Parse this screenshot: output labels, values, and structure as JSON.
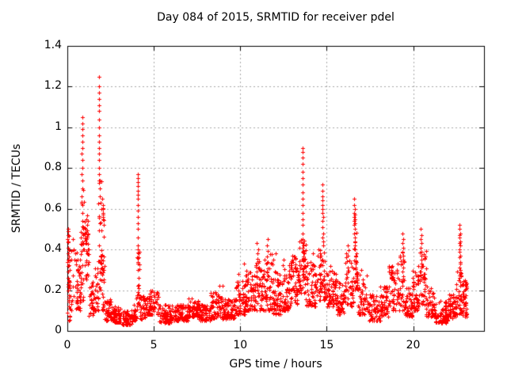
{
  "chart_data": {
    "type": "scatter",
    "title": "Day 084 of 2015, SRMTID for receiver pdel",
    "xlabel": "GPS time / hours",
    "ylabel": "SRMTID / TECUs",
    "xlim": [
      0,
      24.1
    ],
    "ylim": [
      0,
      1.4
    ],
    "xticks": {
      "values": [
        0,
        5,
        10,
        15,
        20
      ],
      "labels": [
        "0",
        "5",
        "10",
        "15",
        "20"
      ]
    },
    "yticks": {
      "values": [
        0,
        0.2,
        0.4,
        0.6,
        0.8,
        1.0,
        1.2,
        1.4
      ],
      "labels": [
        "0",
        "0.2",
        "0.4",
        "0.6",
        "0.8",
        "1",
        "1.2",
        "1.4"
      ]
    },
    "grid": true,
    "legend_position": "none",
    "marker": {
      "shape": "plus",
      "size": 5,
      "color": "#ff0000"
    },
    "colors": {
      "background": "#ffffff",
      "border": "#000000",
      "grid": "#a8a8a8",
      "text": "#000000"
    },
    "spike_points": [
      [
        0.05,
        0.5
      ],
      [
        0.05,
        0.47
      ],
      [
        0.06,
        0.44
      ],
      [
        0.04,
        0.41
      ],
      [
        0.05,
        0.38
      ],
      [
        0.06,
        0.35
      ],
      [
        0.04,
        0.32
      ],
      [
        0.05,
        0.29
      ],
      [
        0.05,
        0.26
      ],
      [
        0.06,
        0.23
      ],
      [
        0.04,
        0.2
      ],
      [
        0.25,
        0.35
      ],
      [
        0.3,
        0.45
      ],
      [
        0.35,
        0.4
      ],
      [
        0.45,
        0.38
      ],
      [
        0.85,
        1.05
      ],
      [
        0.85,
        1.02
      ],
      [
        0.86,
        0.99
      ],
      [
        0.85,
        0.96
      ],
      [
        0.86,
        0.93
      ],
      [
        0.85,
        0.9
      ],
      [
        0.84,
        0.87
      ],
      [
        0.86,
        0.84
      ],
      [
        0.85,
        0.8
      ],
      [
        0.84,
        0.77
      ],
      [
        0.86,
        0.74
      ],
      [
        0.85,
        0.7
      ],
      [
        0.84,
        0.66
      ],
      [
        0.85,
        0.62
      ],
      [
        0.86,
        0.58
      ],
      [
        0.85,
        0.54
      ],
      [
        0.9,
        0.5
      ],
      [
        0.92,
        0.47
      ],
      [
        0.88,
        0.44
      ],
      [
        0.95,
        0.4
      ],
      [
        1.05,
        0.5
      ],
      [
        1.1,
        0.55
      ],
      [
        1.15,
        0.52
      ],
      [
        1.2,
        0.48
      ],
      [
        1.82,
        1.25
      ],
      [
        1.82,
        1.2
      ],
      [
        1.83,
        1.17
      ],
      [
        1.82,
        1.14
      ],
      [
        1.81,
        1.11
      ],
      [
        1.83,
        1.08
      ],
      [
        1.82,
        1.04
      ],
      [
        1.82,
        1.0
      ],
      [
        1.81,
        0.96
      ],
      [
        1.83,
        0.93
      ],
      [
        1.82,
        0.9
      ],
      [
        1.83,
        0.87
      ],
      [
        1.81,
        0.84
      ],
      [
        1.82,
        0.8
      ],
      [
        1.84,
        0.77
      ],
      [
        1.86,
        0.74
      ],
      [
        1.88,
        0.7
      ],
      [
        1.9,
        0.66
      ],
      [
        1.92,
        0.63
      ],
      [
        1.95,
        0.6
      ],
      [
        2.03,
        0.65
      ],
      [
        2.05,
        0.62
      ],
      [
        2.07,
        0.6
      ],
      [
        2.04,
        0.58
      ],
      [
        2.06,
        0.56
      ],
      [
        2.08,
        0.55
      ],
      [
        2.1,
        0.3
      ],
      [
        4.08,
        0.77
      ],
      [
        4.09,
        0.75
      ],
      [
        4.08,
        0.73
      ],
      [
        4.1,
        0.71
      ],
      [
        4.09,
        0.69
      ],
      [
        4.08,
        0.67
      ],
      [
        4.1,
        0.65
      ],
      [
        4.09,
        0.62
      ],
      [
        4.08,
        0.59
      ],
      [
        4.1,
        0.56
      ],
      [
        4.09,
        0.53
      ],
      [
        4.08,
        0.5
      ],
      [
        4.1,
        0.46
      ],
      [
        4.09,
        0.42
      ],
      [
        4.11,
        0.38
      ],
      [
        4.1,
        0.34
      ],
      [
        4.09,
        0.3
      ],
      [
        4.11,
        0.26
      ],
      [
        4.1,
        0.22
      ],
      [
        4.12,
        0.18
      ],
      [
        4.8,
        0.2
      ],
      [
        5.0,
        0.19
      ],
      [
        6.5,
        0.13
      ],
      [
        7.2,
        0.16
      ],
      [
        8.8,
        0.22
      ],
      [
        9.0,
        0.22
      ],
      [
        9.9,
        0.28
      ],
      [
        10.2,
        0.33
      ],
      [
        10.95,
        0.43
      ],
      [
        11.05,
        0.4
      ],
      [
        11.55,
        0.42
      ],
      [
        11.6,
        0.45
      ],
      [
        12.05,
        0.38
      ],
      [
        12.5,
        0.35
      ],
      [
        13.0,
        0.37
      ],
      [
        13.05,
        0.34
      ],
      [
        13.6,
        0.9
      ],
      [
        13.6,
        0.88
      ],
      [
        13.61,
        0.85
      ],
      [
        13.59,
        0.82
      ],
      [
        13.6,
        0.78
      ],
      [
        13.62,
        0.75
      ],
      [
        13.6,
        0.72
      ],
      [
        13.61,
        0.68
      ],
      [
        13.59,
        0.65
      ],
      [
        13.6,
        0.62
      ],
      [
        13.62,
        0.58
      ],
      [
        13.6,
        0.55
      ],
      [
        13.61,
        0.52
      ],
      [
        13.63,
        0.48
      ],
      [
        13.6,
        0.45
      ],
      [
        13.65,
        0.42
      ],
      [
        13.68,
        0.38
      ],
      [
        13.7,
        0.35
      ],
      [
        13.72,
        0.32
      ],
      [
        13.66,
        0.29
      ],
      [
        14.2,
        0.38
      ],
      [
        14.75,
        0.72
      ],
      [
        14.75,
        0.69
      ],
      [
        14.76,
        0.66
      ],
      [
        14.74,
        0.64
      ],
      [
        14.77,
        0.62
      ],
      [
        14.75,
        0.6
      ],
      [
        14.76,
        0.58
      ],
      [
        14.78,
        0.56
      ],
      [
        14.75,
        0.54
      ],
      [
        14.77,
        0.51
      ],
      [
        14.79,
        0.48
      ],
      [
        14.76,
        0.46
      ],
      [
        14.8,
        0.44
      ],
      [
        14.78,
        0.42
      ],
      [
        15.2,
        0.32
      ],
      [
        16.15,
        0.38
      ],
      [
        16.2,
        0.42
      ],
      [
        16.6,
        0.65
      ],
      [
        16.6,
        0.62
      ],
      [
        16.61,
        0.6
      ],
      [
        16.59,
        0.58
      ],
      [
        16.62,
        0.57
      ],
      [
        16.6,
        0.56
      ],
      [
        16.61,
        0.55
      ],
      [
        16.58,
        0.54
      ],
      [
        16.62,
        0.53
      ],
      [
        16.6,
        0.52
      ],
      [
        16.63,
        0.5
      ],
      [
        16.59,
        0.48
      ],
      [
        16.64,
        0.46
      ],
      [
        16.61,
        0.44
      ],
      [
        16.65,
        0.42
      ],
      [
        16.62,
        0.4
      ],
      [
        16.66,
        0.37
      ],
      [
        16.68,
        0.34
      ],
      [
        16.7,
        0.31
      ],
      [
        16.72,
        0.28
      ],
      [
        17.0,
        0.3
      ],
      [
        18.75,
        0.3
      ],
      [
        18.8,
        0.32
      ],
      [
        19.4,
        0.48
      ],
      [
        19.41,
        0.45
      ],
      [
        19.39,
        0.43
      ],
      [
        19.42,
        0.41
      ],
      [
        19.4,
        0.39
      ],
      [
        19.43,
        0.37
      ],
      [
        19.41,
        0.35
      ],
      [
        19.39,
        0.33
      ],
      [
        19.42,
        0.31
      ],
      [
        19.4,
        0.29
      ],
      [
        19.44,
        0.27
      ],
      [
        19.45,
        0.25
      ],
      [
        20.45,
        0.5
      ],
      [
        20.46,
        0.47
      ],
      [
        20.44,
        0.45
      ],
      [
        20.47,
        0.43
      ],
      [
        20.45,
        0.41
      ],
      [
        20.48,
        0.39
      ],
      [
        20.46,
        0.37
      ],
      [
        20.49,
        0.35
      ],
      [
        20.47,
        0.33
      ],
      [
        20.5,
        0.31
      ],
      [
        22.7,
        0.52
      ],
      [
        22.7,
        0.5
      ],
      [
        22.71,
        0.48
      ],
      [
        22.69,
        0.47
      ],
      [
        22.7,
        0.46
      ],
      [
        22.72,
        0.44
      ],
      [
        22.7,
        0.43
      ],
      [
        22.71,
        0.42
      ],
      [
        22.69,
        0.4
      ],
      [
        22.7,
        0.39
      ],
      [
        22.72,
        0.37
      ],
      [
        22.7,
        0.36
      ],
      [
        22.71,
        0.34
      ],
      [
        22.73,
        0.33
      ],
      [
        22.7,
        0.31
      ],
      [
        22.72,
        0.3
      ],
      [
        22.71,
        0.28
      ],
      [
        22.7,
        0.26
      ],
      [
        22.73,
        0.24
      ],
      [
        22.72,
        0.22
      ],
      [
        23.0,
        0.25
      ]
    ],
    "baseline_bands": [
      [
        0.0,
        0.15,
        0.05,
        0.5,
        25
      ],
      [
        0.1,
        0.6,
        0.1,
        0.42,
        35
      ],
      [
        0.6,
        0.75,
        0.1,
        0.35,
        20
      ],
      [
        0.75,
        1.0,
        0.15,
        0.75,
        30
      ],
      [
        1.0,
        1.25,
        0.25,
        0.57,
        35
      ],
      [
        1.25,
        1.55,
        0.07,
        0.25,
        30
      ],
      [
        1.55,
        1.8,
        0.1,
        0.35,
        25
      ],
      [
        1.8,
        2.0,
        0.2,
        0.75,
        30
      ],
      [
        2.0,
        2.15,
        0.1,
        0.68,
        25
      ],
      [
        2.15,
        2.6,
        0.05,
        0.16,
        45
      ],
      [
        2.6,
        3.1,
        0.04,
        0.13,
        50
      ],
      [
        3.1,
        3.8,
        0.03,
        0.1,
        60
      ],
      [
        3.8,
        4.0,
        0.05,
        0.15,
        20
      ],
      [
        4.0,
        4.2,
        0.1,
        0.45,
        25
      ],
      [
        4.2,
        4.55,
        0.06,
        0.17,
        35
      ],
      [
        4.55,
        5.3,
        0.08,
        0.2,
        70
      ],
      [
        5.3,
        6.1,
        0.04,
        0.13,
        75
      ],
      [
        6.1,
        7.0,
        0.05,
        0.13,
        85
      ],
      [
        7.0,
        7.6,
        0.07,
        0.16,
        60
      ],
      [
        7.6,
        8.3,
        0.05,
        0.13,
        65
      ],
      [
        8.3,
        9.0,
        0.06,
        0.2,
        70
      ],
      [
        9.0,
        9.7,
        0.06,
        0.16,
        70
      ],
      [
        9.7,
        10.3,
        0.08,
        0.25,
        65
      ],
      [
        10.3,
        10.9,
        0.1,
        0.3,
        65
      ],
      [
        10.9,
        11.4,
        0.1,
        0.38,
        55
      ],
      [
        11.4,
        11.9,
        0.1,
        0.4,
        55
      ],
      [
        11.9,
        12.4,
        0.08,
        0.3,
        55
      ],
      [
        12.4,
        12.9,
        0.1,
        0.33,
        55
      ],
      [
        12.9,
        13.4,
        0.13,
        0.38,
        55
      ],
      [
        13.4,
        13.8,
        0.18,
        0.45,
        45
      ],
      [
        13.8,
        14.4,
        0.12,
        0.35,
        60
      ],
      [
        14.4,
        15.0,
        0.15,
        0.4,
        60
      ],
      [
        15.0,
        15.6,
        0.12,
        0.3,
        60
      ],
      [
        15.6,
        16.1,
        0.08,
        0.25,
        50
      ],
      [
        16.1,
        16.55,
        0.12,
        0.4,
        45
      ],
      [
        16.55,
        16.8,
        0.2,
        0.5,
        30
      ],
      [
        16.8,
        17.4,
        0.08,
        0.28,
        55
      ],
      [
        17.4,
        18.1,
        0.05,
        0.18,
        65
      ],
      [
        18.1,
        18.6,
        0.07,
        0.22,
        50
      ],
      [
        18.6,
        19.05,
        0.1,
        0.32,
        45
      ],
      [
        19.05,
        19.5,
        0.1,
        0.4,
        40
      ],
      [
        19.5,
        19.95,
        0.07,
        0.22,
        50
      ],
      [
        19.95,
        20.3,
        0.1,
        0.3,
        40
      ],
      [
        20.3,
        20.75,
        0.12,
        0.42,
        45
      ],
      [
        20.75,
        21.3,
        0.07,
        0.22,
        55
      ],
      [
        21.3,
        22.0,
        0.04,
        0.15,
        65
      ],
      [
        22.0,
        22.5,
        0.06,
        0.18,
        50
      ],
      [
        22.5,
        22.8,
        0.08,
        0.3,
        30
      ],
      [
        22.8,
        23.1,
        0.07,
        0.25,
        45
      ]
    ]
  }
}
